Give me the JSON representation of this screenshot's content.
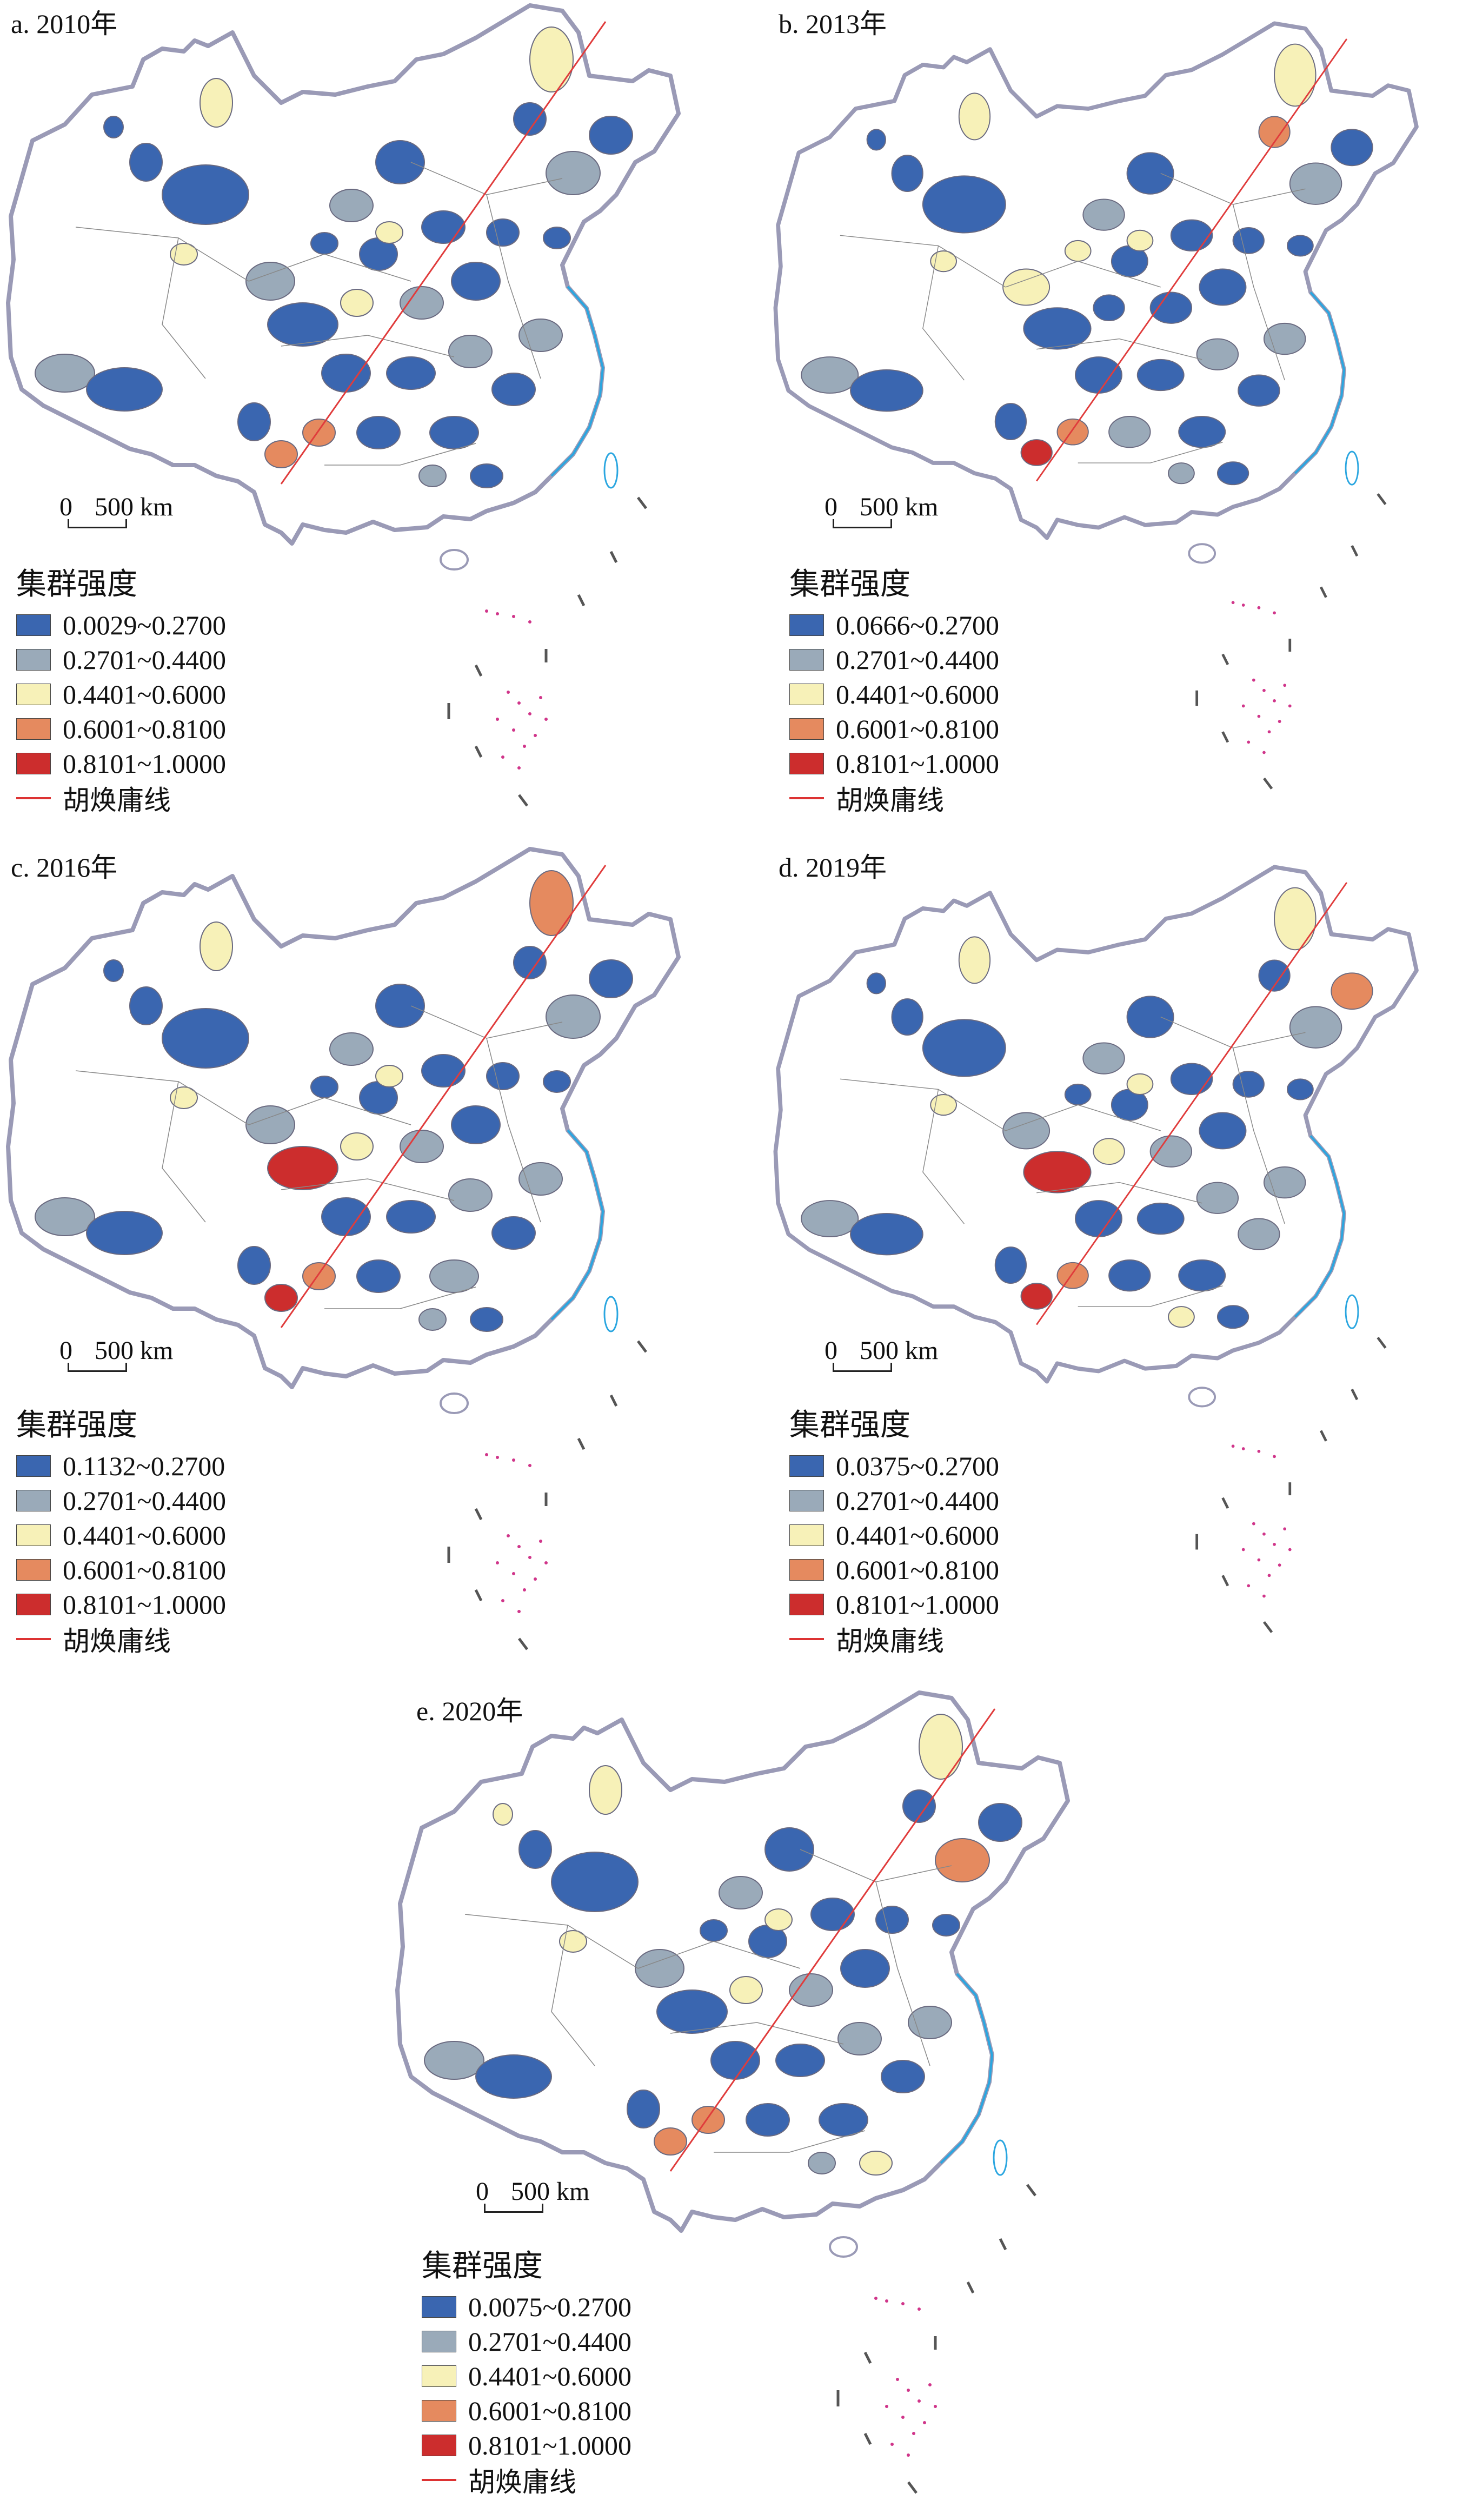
{
  "colors": {
    "c1": "#3a66b0",
    "c2": "#9aaab9",
    "c3": "#f7f1b8",
    "c4": "#e58a5f",
    "c5": "#cc2d2d",
    "hu_line": "#e03c3c",
    "coast": "#2aa6e0",
    "border": "#9a9ab6",
    "islands": "#d0358a"
  },
  "panels": [
    {
      "title": "a. 2010年",
      "scale": {
        "zero": "0",
        "label": "500 km"
      },
      "legend": {
        "title": "集群强度",
        "items": [
          {
            "label": "0.0029~0.2700",
            "color": "#3a66b0"
          },
          {
            "label": "0.2701~0.4400",
            "color": "#9aaab9"
          },
          {
            "label": "0.4401~0.6000",
            "color": "#f7f1b8"
          },
          {
            "label": "0.6001~0.8100",
            "color": "#e58a5f"
          },
          {
            "label": "0.8101~1.0000",
            "color": "#cc2d2d"
          }
        ],
        "line_label": "胡焕庸线"
      }
    },
    {
      "title": "b. 2013年",
      "scale": {
        "zero": "0",
        "label": "500 km"
      },
      "legend": {
        "title": "集群强度",
        "items": [
          {
            "label": "0.0666~0.2700",
            "color": "#3a66b0"
          },
          {
            "label": "0.2701~0.4400",
            "color": "#9aaab9"
          },
          {
            "label": "0.4401~0.6000",
            "color": "#f7f1b8"
          },
          {
            "label": "0.6001~0.8100",
            "color": "#e58a5f"
          },
          {
            "label": "0.8101~1.0000",
            "color": "#cc2d2d"
          }
        ],
        "line_label": "胡焕庸线"
      }
    },
    {
      "title": "c. 2016年",
      "scale": {
        "zero": "0",
        "label": "500 km"
      },
      "legend": {
        "title": "集群强度",
        "items": [
          {
            "label": "0.1132~0.2700",
            "color": "#3a66b0"
          },
          {
            "label": "0.2701~0.4400",
            "color": "#9aaab9"
          },
          {
            "label": "0.4401~0.6000",
            "color": "#f7f1b8"
          },
          {
            "label": "0.6001~0.8100",
            "color": "#e58a5f"
          },
          {
            "label": "0.8101~1.0000",
            "color": "#cc2d2d"
          }
        ],
        "line_label": "胡焕庸线"
      }
    },
    {
      "title": "d. 2019年",
      "scale": {
        "zero": "0",
        "label": "500 km"
      },
      "legend": {
        "title": "集群强度",
        "items": [
          {
            "label": "0.0375~0.2700",
            "color": "#3a66b0"
          },
          {
            "label": "0.2701~0.4400",
            "color": "#9aaab9"
          },
          {
            "label": "0.4401~0.6000",
            "color": "#f7f1b8"
          },
          {
            "label": "0.6001~0.8100",
            "color": "#e58a5f"
          },
          {
            "label": "0.8101~1.0000",
            "color": "#cc2d2d"
          }
        ],
        "line_label": "胡焕庸线"
      }
    },
    {
      "title": "e. 2020年",
      "scale": {
        "zero": "0",
        "label": "500 km"
      },
      "legend": {
        "title": "集群强度",
        "items": [
          {
            "label": "0.0075~0.2700",
            "color": "#3a66b0"
          },
          {
            "label": "0.2701~0.4400",
            "color": "#9aaab9"
          },
          {
            "label": "0.4401~0.6000",
            "color": "#f7f1b8"
          },
          {
            "label": "0.6001~0.8100",
            "color": "#e58a5f"
          },
          {
            "label": "0.8101~1.0000",
            "color": "#cc2d2d"
          }
        ],
        "line_label": "胡焕庸线"
      }
    }
  ]
}
